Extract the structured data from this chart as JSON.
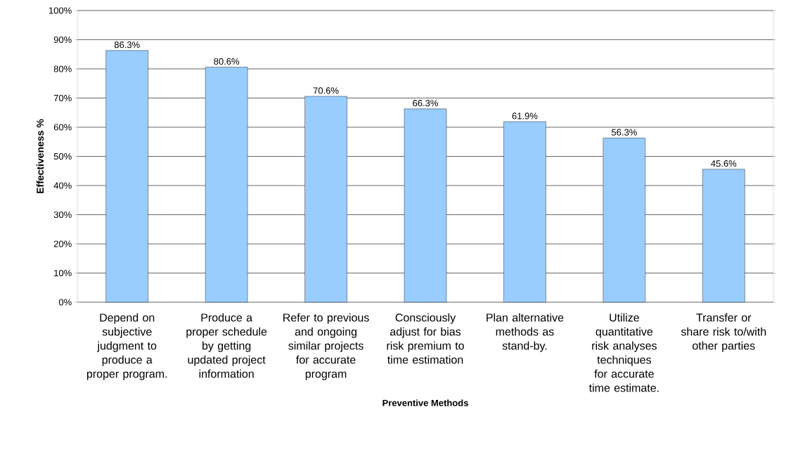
{
  "chart_data": {
    "type": "bar",
    "xlabel": "Preventive Methods",
    "ylabel": "Effectiveness %",
    "categories": [
      "Depend on subjective judgment to produce a proper program.",
      "Produce a proper schedule by getting updated project information",
      "Refer to previous and ongoing similar projects for accurate program",
      "Consciously adjust for bias risk premium to time estimation",
      "Plan alternative methods as stand-by.",
      "Utilize quantitative risk analyses techniques for accurate time estimate.",
      "Transfer or share risk to/with other parties"
    ],
    "values": [
      86.3,
      80.6,
      70.6,
      66.3,
      61.9,
      56.3,
      45.6
    ],
    "value_labels": [
      "86.3%",
      "80.6%",
      "70.6%",
      "66.3%",
      "61.9%",
      "56.3%",
      "45.6%"
    ],
    "color": "#99ccff",
    "ylim": [
      0,
      100
    ],
    "yticks": [
      {
        "value": 0,
        "label": "0%"
      },
      {
        "value": 10,
        "label": "10%"
      },
      {
        "value": 20,
        "label": "20%"
      },
      {
        "value": 30,
        "label": "30%"
      },
      {
        "value": 40,
        "label": "40%"
      },
      {
        "value": 50,
        "label": "50%"
      },
      {
        "value": 60,
        "label": "60%"
      },
      {
        "value": 70,
        "label": "70%"
      },
      {
        "value": 80,
        "label": "80%"
      },
      {
        "value": 90,
        "label": "90%"
      },
      {
        "value": 100,
        "label": "100%"
      }
    ],
    "grid": "y"
  }
}
